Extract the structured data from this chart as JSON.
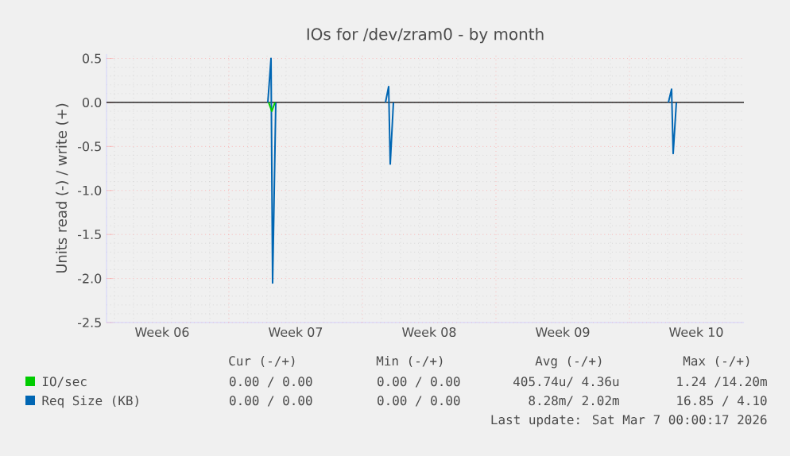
{
  "chart_data": {
    "type": "line",
    "title": "IOs for /dev/zram0 - by month",
    "ylabel": "Units read (-) / write (+)",
    "xlim": [
      "2026-02-01T14:00",
      "2026-03-07T00:00"
    ],
    "ylim": [
      -2.5,
      0.55
    ],
    "xticks": [
      {
        "value": "2026-02-04T12:00",
        "label": "Week 06"
      },
      {
        "value": "2026-02-11T12:00",
        "label": "Week 07"
      },
      {
        "value": "2026-02-18T12:00",
        "label": "Week 08"
      },
      {
        "value": "2026-02-25T12:00",
        "label": "Week 09"
      },
      {
        "value": "2026-03-04T12:00",
        "label": "Week 10"
      },
      {
        "value": "2026-02-08T00:00",
        "label": null
      },
      {
        "value": "2026-02-15T00:00",
        "label": null
      },
      {
        "value": "2026-02-22T00:00",
        "label": null
      },
      {
        "value": "2026-03-01T00:00",
        "label": null
      }
    ],
    "yticks": [
      {
        "value": -2.5,
        "label": "-2.5"
      },
      {
        "value": -2.0,
        "label": "-2.0"
      },
      {
        "value": -1.5,
        "label": "-1.5"
      },
      {
        "value": -1.0,
        "label": "-1.0"
      },
      {
        "value": -0.5,
        "label": "-0.5"
      },
      {
        "value": 0,
        "label": "0.0"
      },
      {
        "value": 0.5,
        "label": "0.5"
      }
    ],
    "grid": true,
    "legend": "bottom",
    "ref_lines": [
      {
        "axis": "y",
        "value": 0,
        "color": "#000000"
      }
    ],
    "series": [
      {
        "name": "IO/sec",
        "color": "#00cc00",
        "x": [
          "2026-02-10T02:00",
          "2026-02-10T06:00",
          "2026-02-10T10:00"
        ],
        "values": [
          0,
          -0.1,
          0
        ]
      },
      {
        "name": "Req Size (KB)",
        "color": "#0066b3",
        "x": [
          "2026-02-10T01:00",
          "2026-02-10T05:00",
          "2026-02-10T07:00",
          "2026-02-10T11:00",
          "2026-02-13T00:00",
          "2026-02-16T05:00",
          "2026-02-16T09:00",
          "2026-02-16T11:00",
          "2026-02-16T15:00",
          "2026-02-24T00:00",
          "2026-03-03T01:00",
          "2026-03-03T05:00",
          "2026-03-03T07:00",
          "2026-03-03T11:00"
        ],
        "values": [
          0,
          0.5,
          -2.05,
          0,
          null,
          0,
          0.18,
          -0.7,
          0,
          null,
          0,
          0.15,
          -0.58,
          0
        ]
      }
    ],
    "annotations": [
      "Cur (-/+)",
      "Min (-/+)",
      "Avg (-/+)",
      "Max (-/+)",
      "0.00 / 0.00",
      "0.00 / 0.00",
      "405.74u/ 4.36u",
      "1.24 /14.20m",
      "0.00 / 0.00",
      "0.00 / 0.00",
      "8.28m/ 2.02m",
      "16.85 / 4.10",
      "Last update: Sat Mar  7 00:00:17 2026"
    ]
  }
}
